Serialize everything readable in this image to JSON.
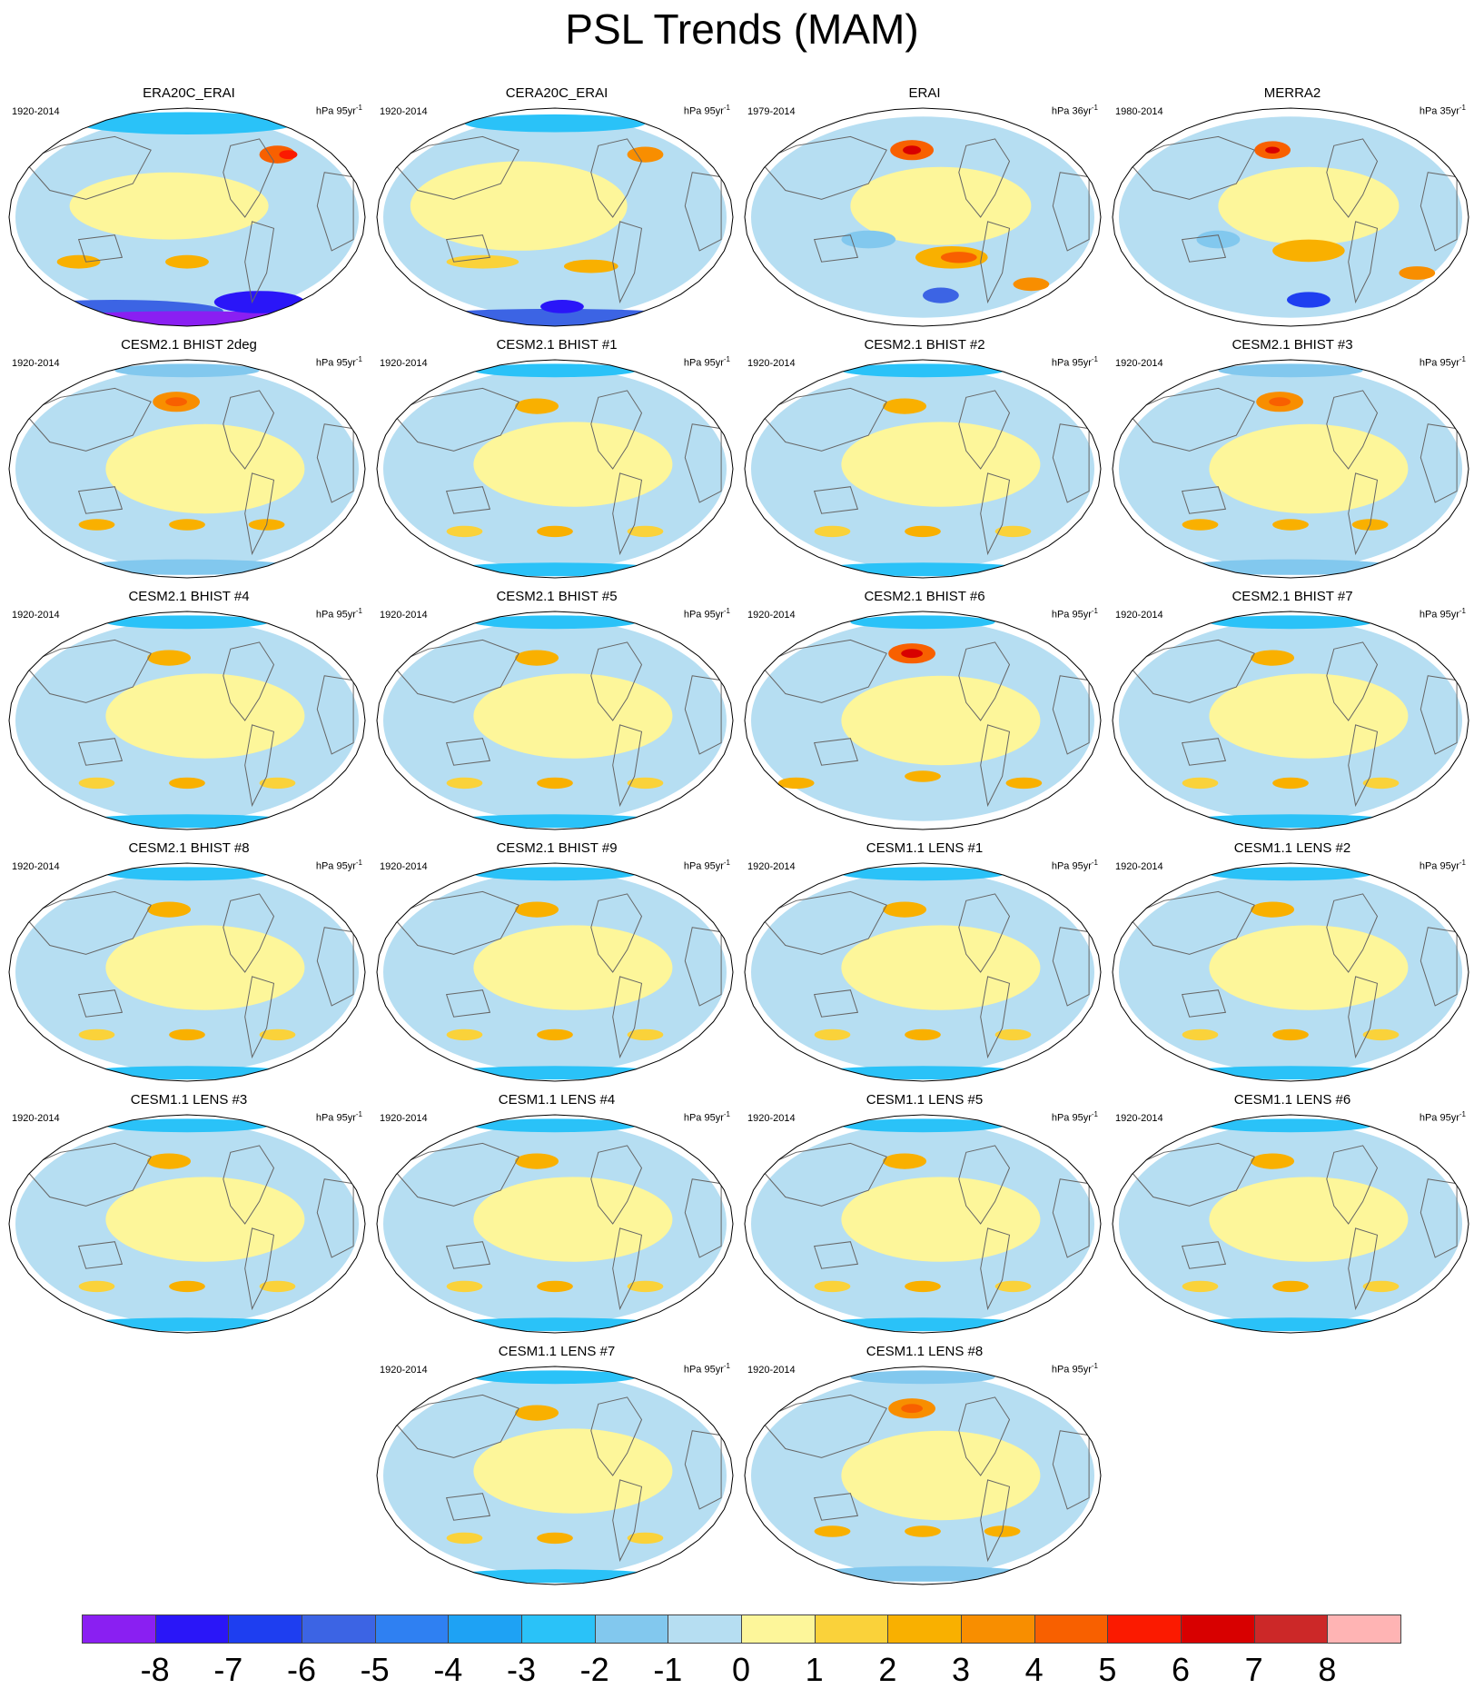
{
  "title": "PSL Trends (MAM)",
  "panels": [
    {
      "title": "ERA20C_ERAI",
      "years": "1920-2014",
      "units": "hPa 95yr",
      "units_sup": "-1",
      "pattern": "era20c"
    },
    {
      "title": "CERA20C_ERAI",
      "years": "1920-2014",
      "units": "hPa 95yr",
      "units_sup": "-1",
      "pattern": "cera20c"
    },
    {
      "title": "ERAI",
      "years": "1979-2014",
      "units": "hPa 36yr",
      "units_sup": "-1",
      "pattern": "erai"
    },
    {
      "title": "MERRA2",
      "years": "1980-2014",
      "units": "hPa 35yr",
      "units_sup": "-1",
      "pattern": "merra2"
    },
    {
      "title": "CESM2.1 BHIST 2deg",
      "years": "1920-2014",
      "units": "hPa 95yr",
      "units_sup": "-1",
      "pattern": "strong-np"
    },
    {
      "title": "CESM2.1 BHIST #1",
      "years": "1920-2014",
      "units": "hPa 95yr",
      "units_sup": "-1",
      "pattern": "model"
    },
    {
      "title": "CESM2.1 BHIST #2",
      "years": "1920-2014",
      "units": "hPa 95yr",
      "units_sup": "-1",
      "pattern": "model"
    },
    {
      "title": "CESM2.1 BHIST #3",
      "years": "1920-2014",
      "units": "hPa 95yr",
      "units_sup": "-1",
      "pattern": "strong-np"
    },
    {
      "title": "CESM2.1 BHIST #4",
      "years": "1920-2014",
      "units": "hPa 95yr",
      "units_sup": "-1",
      "pattern": "model"
    },
    {
      "title": "CESM2.1 BHIST #5",
      "years": "1920-2014",
      "units": "hPa 95yr",
      "units_sup": "-1",
      "pattern": "model"
    },
    {
      "title": "CESM2.1 BHIST #6",
      "years": "1920-2014",
      "units": "hPa 95yr",
      "units_sup": "-1",
      "pattern": "very-strong-np"
    },
    {
      "title": "CESM2.1 BHIST #7",
      "years": "1920-2014",
      "units": "hPa 95yr",
      "units_sup": "-1",
      "pattern": "model"
    },
    {
      "title": "CESM2.1 BHIST #8",
      "years": "1920-2014",
      "units": "hPa 95yr",
      "units_sup": "-1",
      "pattern": "model"
    },
    {
      "title": "CESM2.1 BHIST #9",
      "years": "1920-2014",
      "units": "hPa 95yr",
      "units_sup": "-1",
      "pattern": "model"
    },
    {
      "title": "CESM1.1 LENS #1",
      "years": "1920-2014",
      "units": "hPa 95yr",
      "units_sup": "-1",
      "pattern": "model"
    },
    {
      "title": "CESM1.1 LENS #2",
      "years": "1920-2014",
      "units": "hPa 95yr",
      "units_sup": "-1",
      "pattern": "model"
    },
    {
      "title": "CESM1.1 LENS #3",
      "years": "1920-2014",
      "units": "hPa 95yr",
      "units_sup": "-1",
      "pattern": "model"
    },
    {
      "title": "CESM1.1 LENS #4",
      "years": "1920-2014",
      "units": "hPa 95yr",
      "units_sup": "-1",
      "pattern": "model"
    },
    {
      "title": "CESM1.1 LENS #5",
      "years": "1920-2014",
      "units": "hPa 95yr",
      "units_sup": "-1",
      "pattern": "model"
    },
    {
      "title": "CESM1.1 LENS #6",
      "years": "1920-2014",
      "units": "hPa 95yr",
      "units_sup": "-1",
      "pattern": "model"
    },
    {
      "title": "CESM1.1 LENS #7",
      "years": "1920-2014",
      "units": "hPa 95yr",
      "units_sup": "-1",
      "pattern": "model"
    },
    {
      "title": "CESM1.1 LENS #8",
      "years": "1920-2014",
      "units": "hPa 95yr",
      "units_sup": "-1",
      "pattern": "strong-np"
    }
  ],
  "colorbar": {
    "colors": [
      "#8a1ff2",
      "#2a16f8",
      "#1e3ef0",
      "#3c64e4",
      "#2f80f2",
      "#1ea2f4",
      "#2ac2f8",
      "#82c8ee",
      "#b6def2",
      "#fdf69a",
      "#fad23a",
      "#f9b000",
      "#f88e00",
      "#f86000",
      "#fb1a00",
      "#d80000",
      "#cc2828",
      "#ffb4b4"
    ],
    "labels": [
      "-8",
      "-7",
      "-6",
      "-5",
      "-4",
      "-3",
      "-2",
      "-1",
      "0",
      "1",
      "2",
      "3",
      "4",
      "5",
      "6",
      "7",
      "8"
    ]
  },
  "colors": {
    "continent_outline": "#666666",
    "map_outline": "#000000"
  }
}
